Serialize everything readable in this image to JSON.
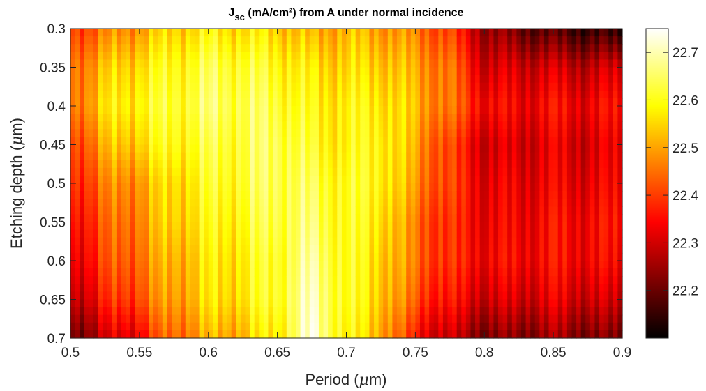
{
  "chart_data": {
    "type": "heatmap",
    "title": {
      "main": "J",
      "subscript": "sc",
      "rest": " (mA/cm²) from A under normal incidence"
    },
    "xlabel": {
      "prefix": "Period (",
      "symbol": "μ",
      "suffix": "m)"
    },
    "ylabel": {
      "prefix": "Etching depth (",
      "symbol": "μ",
      "suffix": "m)"
    },
    "xlim": [
      0.5,
      0.9
    ],
    "ylim": [
      0.3,
      0.7
    ],
    "y_direction": "reverse",
    "x_ticks": [
      "0.5",
      "0.55",
      "0.6",
      "0.65",
      "0.7",
      "0.75",
      "0.8",
      "0.85",
      "0.9"
    ],
    "y_ticks": [
      "0.3",
      "0.35",
      "0.4",
      "0.45",
      "0.5",
      "0.55",
      "0.6",
      "0.65",
      "0.7"
    ],
    "colorbar": {
      "colormap": "hot",
      "clim": [
        22.1,
        22.75
      ],
      "ticks": [
        "22.2",
        "22.3",
        "22.4",
        "22.5",
        "22.6",
        "22.7"
      ]
    },
    "y_depths": [
      0.3,
      0.35,
      0.4,
      0.45,
      0.5,
      0.55,
      0.6,
      0.65,
      0.7
    ],
    "x_periods": [
      0.5,
      0.525,
      0.55,
      0.575,
      0.6,
      0.625,
      0.65,
      0.675,
      0.7,
      0.725,
      0.75,
      0.775,
      0.8,
      0.825,
      0.85,
      0.875,
      0.9
    ],
    "jsc_values": [
      [
        22.4,
        22.45,
        22.5,
        22.55,
        22.57,
        22.56,
        22.55,
        22.5,
        22.52,
        22.5,
        22.46,
        22.4,
        22.25,
        22.2,
        22.17,
        22.15,
        22.12
      ],
      [
        22.45,
        22.52,
        22.57,
        22.6,
        22.63,
        22.62,
        22.6,
        22.56,
        22.55,
        22.55,
        22.5,
        22.45,
        22.3,
        22.3,
        22.3,
        22.28,
        22.3
      ],
      [
        22.45,
        22.55,
        22.6,
        22.62,
        22.65,
        22.64,
        22.63,
        22.58,
        22.58,
        22.58,
        22.52,
        22.45,
        22.35,
        22.33,
        22.35,
        22.33,
        22.35
      ],
      [
        22.4,
        22.5,
        22.56,
        22.6,
        22.62,
        22.63,
        22.65,
        22.6,
        22.58,
        22.6,
        22.5,
        22.4,
        22.3,
        22.3,
        22.32,
        22.3,
        22.32
      ],
      [
        22.38,
        22.45,
        22.5,
        22.56,
        22.6,
        22.62,
        22.65,
        22.63,
        22.6,
        22.6,
        22.48,
        22.4,
        22.32,
        22.32,
        22.33,
        22.32,
        22.33
      ],
      [
        22.35,
        22.42,
        22.48,
        22.55,
        22.58,
        22.6,
        22.64,
        22.65,
        22.6,
        22.58,
        22.45,
        22.38,
        22.33,
        22.33,
        22.35,
        22.34,
        22.35
      ],
      [
        22.32,
        22.4,
        22.46,
        22.52,
        22.56,
        22.58,
        22.62,
        22.68,
        22.6,
        22.56,
        22.45,
        22.38,
        22.34,
        22.34,
        22.35,
        22.34,
        22.33
      ],
      [
        22.28,
        22.36,
        22.43,
        22.5,
        22.55,
        22.57,
        22.62,
        22.7,
        22.6,
        22.55,
        22.42,
        22.35,
        22.3,
        22.3,
        22.32,
        22.3,
        22.28
      ],
      [
        22.2,
        22.28,
        22.35,
        22.45,
        22.5,
        22.52,
        22.58,
        22.72,
        22.58,
        22.52,
        22.35,
        22.28,
        22.22,
        22.22,
        22.25,
        22.22,
        22.2
      ]
    ]
  }
}
